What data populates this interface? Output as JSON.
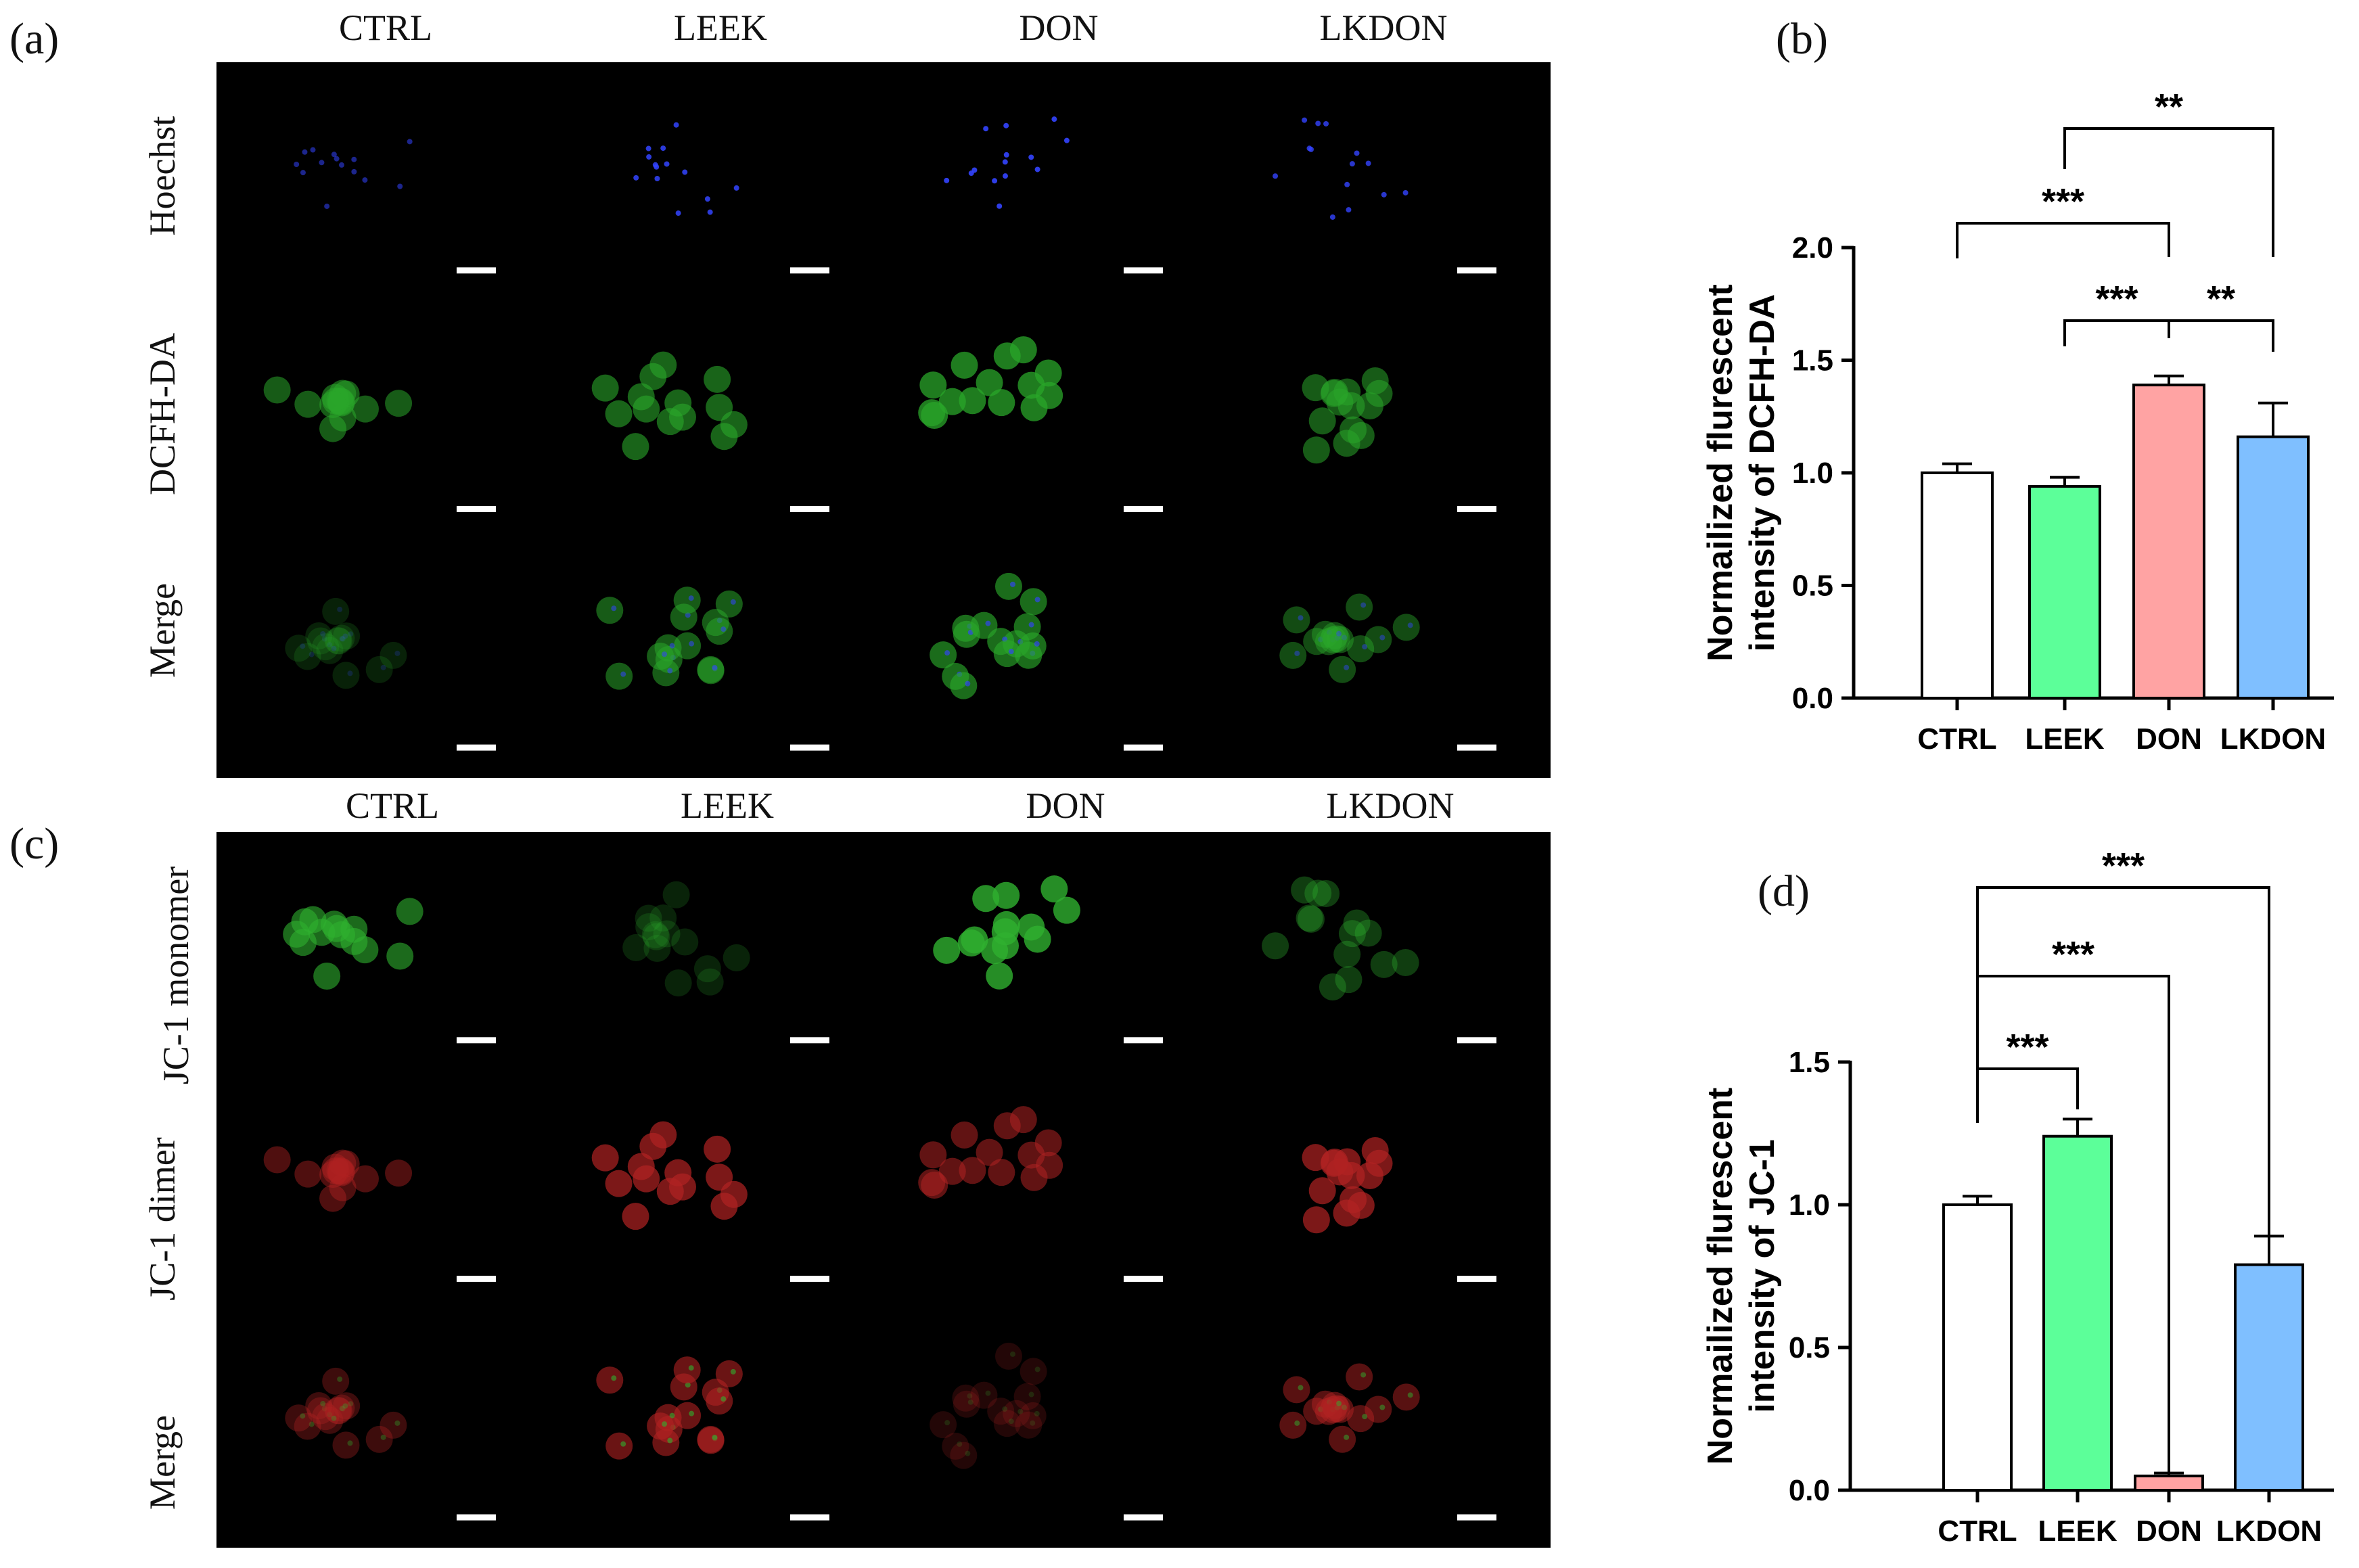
{
  "panels": {
    "a": {
      "label": "(a)",
      "columns": [
        "CTRL",
        "LEEK",
        "DON",
        "LKDON"
      ],
      "rows": [
        "Hoechst",
        "DCFH-DA",
        "Merge"
      ]
    },
    "b": {
      "label": "(b)"
    },
    "c": {
      "label": "(c)",
      "columns": [
        "CTRL",
        "LEEK",
        "DON",
        "LKDON"
      ],
      "rows": [
        "JC-1 monomer",
        "JC-1 dimer",
        "Merge"
      ]
    },
    "d": {
      "label": "(d)"
    }
  },
  "colors": {
    "ctrl": "#ffffff",
    "leek": "#5cff99",
    "don": "#ffa3a3",
    "lkdon": "#7fbfff",
    "hoechst": "#3344ff",
    "dcfh": "#2aa62a",
    "jc1_monomer": "#2fb02f",
    "jc1_dimer": "#b02222"
  },
  "chart_data": [
    {
      "type": "bar",
      "panel": "b",
      "categories": [
        "CTRL",
        "LEEK",
        "DON",
        "LKDON"
      ],
      "values": [
        1.0,
        0.94,
        1.39,
        1.16
      ],
      "errors": [
        0.04,
        0.04,
        0.04,
        0.15
      ],
      "ylabel_line1": "Normailized flurescent",
      "ylabel_line2": "intensity of DCFH-DA",
      "ylim": [
        0,
        2.0
      ],
      "yticks": [
        "0.0",
        "0.5",
        "1.0",
        "1.5",
        "2.0"
      ],
      "ytick_values": [
        0,
        0.5,
        1.0,
        1.5,
        2.0
      ],
      "significance": [
        {
          "from": 0,
          "to": 2,
          "label": "***"
        },
        {
          "from": 1,
          "to": 3,
          "label": "**"
        },
        {
          "from": 1,
          "to": 2,
          "label": "***"
        },
        {
          "from": 2,
          "to": 3,
          "label": "**"
        }
      ]
    },
    {
      "type": "bar",
      "panel": "d",
      "categories": [
        "CTRL",
        "LEEK",
        "DON",
        "LKDON"
      ],
      "values": [
        1.0,
        1.24,
        0.05,
        0.79
      ],
      "errors": [
        0.03,
        0.06,
        0.01,
        0.1
      ],
      "ylabel_line1": "Normailized flurescent",
      "ylabel_line2": "intensity of JC-1",
      "ylim": [
        0,
        1.5
      ],
      "yticks": [
        "0.0",
        "0.5",
        "1.0",
        "1.5"
      ],
      "ytick_values": [
        0,
        0.5,
        1.0,
        1.5
      ],
      "significance": [
        {
          "from": 0,
          "to": 1,
          "label": "***"
        },
        {
          "from": 0,
          "to": 2,
          "label": "***"
        },
        {
          "from": 0,
          "to": 3,
          "label": "***"
        }
      ]
    }
  ]
}
